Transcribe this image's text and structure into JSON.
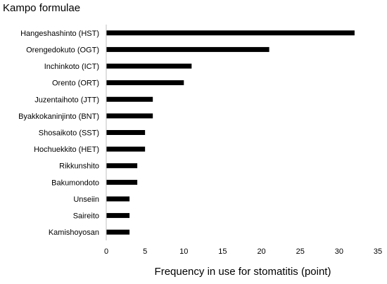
{
  "chart_data": {
    "type": "bar",
    "orientation": "horizontal",
    "title": "Kampo formulae",
    "xlabel": "Frequency in use for stomatitis (point)",
    "ylabel": "",
    "categories": [
      "Hangeshashinto (HST)",
      "Orengedokuto (OGT)",
      "Inchinkoto (ICT)",
      "Orento (ORT)",
      "Juzentaihoto (JTT)",
      "Byakkokaninjinto (BNT)",
      "Shosaikoto (SST)",
      "Hochuekkito (HET)",
      "Rikkunshito",
      "Bakumondoto",
      "Unseiin",
      "Saireito",
      "Kamishoyosan"
    ],
    "values": [
      32,
      21,
      11,
      10,
      6,
      6,
      5,
      5,
      4,
      4,
      3,
      3,
      3
    ],
    "xlim": [
      0,
      35
    ],
    "xticks": [
      0,
      5,
      10,
      15,
      20,
      25,
      30,
      35
    ],
    "grid": false,
    "bar_color": "#000000"
  }
}
